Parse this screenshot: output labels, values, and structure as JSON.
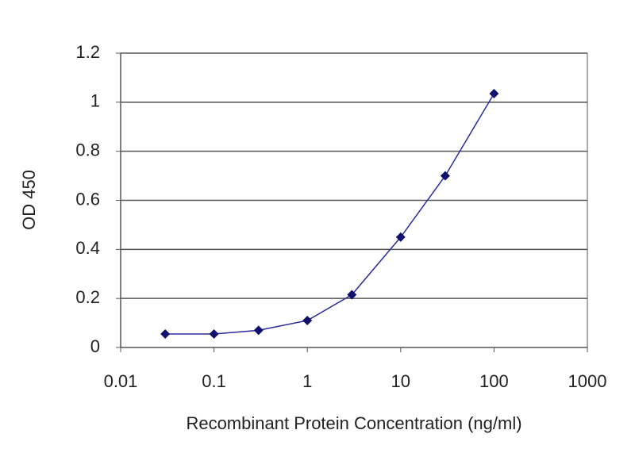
{
  "chart_data": {
    "type": "line",
    "x_label": "Recombinant Protein Concentration (ng/ml)",
    "y_label": "OD 450",
    "x": [
      0.03,
      0.1,
      0.3,
      1,
      3,
      10,
      30,
      100
    ],
    "values": [
      0.055,
      0.055,
      0.07,
      0.11,
      0.215,
      0.45,
      0.7,
      1.035
    ],
    "color": "#2b2b9e",
    "marker_color": "#10106e",
    "x_scale": "log",
    "xlim": [
      0.01,
      1000
    ],
    "xticks": [
      0.01,
      0.1,
      1,
      10,
      100,
      1000
    ],
    "ylim": [
      0,
      1.2
    ],
    "yticks": [
      0,
      0.2,
      0.4,
      0.6,
      0.8,
      1,
      1.2
    ],
    "grid": true
  }
}
